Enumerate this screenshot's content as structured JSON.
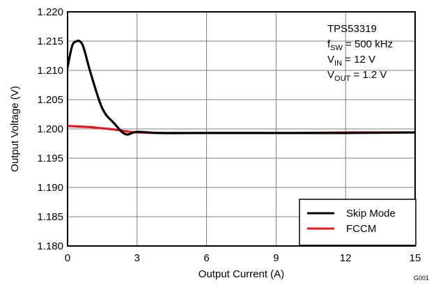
{
  "chart_data": {
    "type": "line",
    "xlabel": "Output Current (A)",
    "ylabel": "Output Voltage (V)",
    "xlim": [
      0,
      15
    ],
    "ylim": [
      1.18,
      1.22
    ],
    "x_ticks": [
      "0",
      "3",
      "6",
      "9",
      "12",
      "15"
    ],
    "y_ticks": [
      "1.180",
      "1.185",
      "1.190",
      "1.195",
      "1.200",
      "1.205",
      "1.210",
      "1.215",
      "1.220"
    ],
    "grid": true,
    "legend_position": "bottom-right",
    "annotation": {
      "device": "TPS53319",
      "fsw": {
        "main": "f",
        "sub": "SW",
        "rest": " = 500 kHz"
      },
      "vin": {
        "main": "V",
        "sub": "IN",
        "rest": " = 12 V"
      },
      "vout": {
        "main": "V",
        "sub": "OUT",
        "rest": " = 1.2 V"
      }
    },
    "figure_id": "G001",
    "series": [
      {
        "name": "Skip Mode",
        "color": "#000000",
        "x": [
          0,
          0.2,
          0.4,
          0.55,
          0.7,
          1.0,
          1.5,
          2.0,
          2.5,
          3.0,
          4.0,
          6.0,
          8.0,
          10.0,
          12.0,
          15.0
        ],
        "y": [
          1.2105,
          1.2142,
          1.215,
          1.2149,
          1.2138,
          1.2095,
          1.2035,
          1.201,
          1.1991,
          1.1995,
          1.1993,
          1.1993,
          1.1993,
          1.1993,
          1.1993,
          1.1994
        ]
      },
      {
        "name": "FCCM",
        "color": "#e8141b",
        "x": [
          0,
          0.5,
          1.0,
          1.5,
          2.0,
          2.5,
          3.0,
          4.0,
          5.0,
          6.0,
          8.0,
          10.0,
          12.0,
          15.0
        ],
        "y": [
          1.2005,
          1.2004,
          1.2003,
          1.2001,
          1.1999,
          1.1996,
          1.1994,
          1.1993,
          1.1993,
          1.1993,
          1.1993,
          1.1993,
          1.1994,
          1.1994
        ]
      }
    ]
  }
}
